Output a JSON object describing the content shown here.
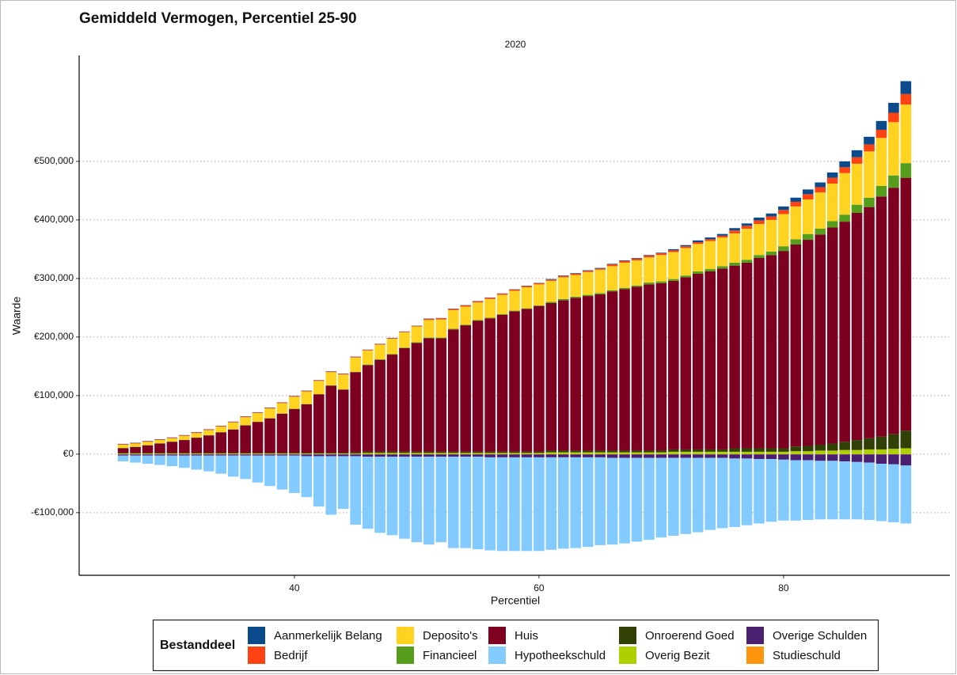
{
  "chart_data": {
    "type": "bar",
    "stacked": true,
    "title": "Gemiddeld Vermogen, Percentiel 25-90",
    "subtitle": "2020",
    "x_label": "Percentiel",
    "y_label": "Waarde",
    "legend_title": "Bestanddeel",
    "legend_position": "bottom",
    "grid": true,
    "x": [
      26,
      27,
      28,
      29,
      30,
      31,
      32,
      33,
      34,
      35,
      36,
      37,
      38,
      39,
      40,
      41,
      42,
      43,
      44,
      45,
      46,
      47,
      48,
      49,
      50,
      51,
      52,
      53,
      54,
      55,
      56,
      57,
      58,
      59,
      60,
      61,
      62,
      63,
      64,
      65,
      66,
      67,
      68,
      69,
      70,
      71,
      72,
      73,
      74,
      75,
      76,
      77,
      78,
      79,
      80,
      81,
      82,
      83,
      84,
      85,
      86,
      87,
      88,
      89,
      90
    ],
    "xlim": [
      22.4,
      93.6
    ],
    "xticks": [
      40,
      60,
      80
    ],
    "ylim": [
      -207000,
      681000
    ],
    "yticks": [
      {
        "value": -100000,
        "label": "-€100,000"
      },
      {
        "value": 0,
        "label": "€0"
      },
      {
        "value": 100000,
        "label": "€100,000"
      },
      {
        "value": 200000,
        "label": "€200,000"
      },
      {
        "value": 300000,
        "label": "€300,000"
      },
      {
        "value": 400000,
        "label": "€400,000"
      },
      {
        "value": 500000,
        "label": "€500,000"
      }
    ],
    "series": [
      {
        "name": "Aanmerkelijk Belang",
        "color": "#0b4a8b",
        "values": [
          500,
          500,
          500,
          500,
          500,
          500,
          500,
          500,
          500,
          500,
          500,
          500,
          500,
          500,
          500,
          500,
          500,
          500,
          500,
          500,
          500,
          500,
          500,
          500,
          500,
          500,
          500,
          500,
          500,
          500,
          500,
          500,
          500,
          500,
          500,
          1000,
          1000,
          1000,
          1000,
          1000,
          1000,
          1000,
          1000,
          1000,
          1000,
          2000,
          2000,
          3000,
          3000,
          3000,
          4000,
          4000,
          5000,
          5000,
          6000,
          7000,
          8000,
          8000,
          9000,
          10000,
          12000,
          13000,
          15000,
          17000,
          22000
        ]
      },
      {
        "name": "Bedrijf",
        "color": "#ff4212",
        "values": [
          1000,
          1000,
          1000,
          1000,
          1000,
          1000,
          1000,
          1000,
          1000,
          1000,
          1000,
          1000,
          1000,
          1000,
          1000,
          1000,
          1000,
          1000,
          1000,
          1000,
          1000,
          1000,
          1000,
          1000,
          1000,
          2000,
          2000,
          2000,
          2000,
          2000,
          2000,
          2000,
          2000,
          2000,
          2000,
          2000,
          2000,
          2000,
          2000,
          2000,
          3000,
          3000,
          3000,
          3000,
          3000,
          3000,
          3000,
          3000,
          3000,
          3000,
          5000,
          5000,
          6000,
          6000,
          7000,
          8000,
          9000,
          9000,
          10000,
          10000,
          11000,
          12000,
          14000,
          16000,
          18000
        ]
      },
      {
        "name": "Deposito's",
        "color": "#ffd320",
        "values": [
          5500,
          5500,
          5500,
          5500,
          5500,
          6500,
          7500,
          8500,
          9500,
          11500,
          13500,
          14500,
          16500,
          17500,
          20500,
          21500,
          22500,
          22500,
          25500,
          24500,
          24000,
          25000,
          26000,
          26000,
          27000,
          30000,
          31000,
          32000,
          31000,
          30000,
          32000,
          33000,
          34000,
          36000,
          36000,
          36000,
          37000,
          37000,
          39000,
          40000,
          41000,
          43000,
          43000,
          43000,
          45000,
          46000,
          47000,
          47000,
          48000,
          49000,
          50000,
          53000,
          53000,
          54000,
          55000,
          56000,
          59000,
          62000,
          64000,
          71000,
          70000,
          79000,
          82000,
          91000,
          100000
        ]
      },
      {
        "name": "Financieel",
        "color": "#579d1c",
        "values": [
          500,
          500,
          500,
          500,
          500,
          500,
          500,
          500,
          500,
          500,
          500,
          500,
          500,
          500,
          500,
          500,
          500,
          500,
          500,
          500,
          1000,
          1000,
          1000,
          1000,
          1000,
          1000,
          1000,
          1000,
          1000,
          1000,
          1000,
          1000,
          1000,
          1000,
          1000,
          2000,
          2000,
          2000,
          2000,
          2000,
          2000,
          2000,
          2000,
          3000,
          3000,
          3000,
          3000,
          4000,
          4000,
          4000,
          5000,
          5000,
          5000,
          6000,
          8000,
          9000,
          10000,
          10000,
          11000,
          12000,
          14000,
          16000,
          18000,
          21000,
          25000
        ]
      },
      {
        "name": "Huis",
        "color": "#7e0021",
        "values": [
          8000,
          10000,
          13000,
          16000,
          19000,
          22000,
          26000,
          30000,
          35000,
          40000,
          47000,
          53000,
          59000,
          67000,
          75000,
          83000,
          100000,
          115000,
          108000,
          137000,
          148000,
          157000,
          166000,
          177000,
          186000,
          194000,
          194000,
          209000,
          216000,
          224000,
          228000,
          234000,
          240000,
          244000,
          249000,
          252000,
          257000,
          261000,
          264000,
          267000,
          272000,
          276000,
          280000,
          284000,
          286000,
          288000,
          294000,
          300000,
          304000,
          309000,
          312000,
          317000,
          325000,
          330000,
          337000,
          345000,
          352000,
          359000,
          369000,
          376000,
          388000,
          395000,
          410000,
          421000,
          432000
        ]
      },
      {
        "name": "Hypotheekschuld",
        "color": "#83caff",
        "values": [
          -10000,
          -12000,
          -14000,
          -16000,
          -18000,
          -21000,
          -24000,
          -27000,
          -31000,
          -36000,
          -40000,
          -46000,
          -52000,
          -58000,
          -64000,
          -70000,
          -86000,
          -100000,
          -90000,
          -117000,
          -123000,
          -130000,
          -134000,
          -140000,
          -146000,
          -150000,
          -146000,
          -156000,
          -156000,
          -158000,
          -159000,
          -160000,
          -160000,
          -160000,
          -160000,
          -158000,
          -156000,
          -155000,
          -153000,
          -150000,
          -148000,
          -146000,
          -143000,
          -140000,
          -136000,
          -133000,
          -130000,
          -127000,
          -123000,
          -120000,
          -117000,
          -114000,
          -110000,
          -107000,
          -104000,
          -103000,
          -102000,
          -100000,
          -100000,
          -99000,
          -98000,
          -98000,
          -98000,
          -99000,
          -99000
        ]
      },
      {
        "name": "Onroerend Goed",
        "color": "#314004",
        "values": [
          1000,
          1000,
          1000,
          1000,
          1000,
          1000,
          1000,
          1000,
          1000,
          1000,
          1000,
          1000,
          1000,
          1000,
          1000,
          1000,
          1000,
          1000,
          1000,
          2000,
          2000,
          2000,
          2000,
          2000,
          2000,
          2000,
          2000,
          2000,
          2000,
          2000,
          2000,
          2000,
          2000,
          2000,
          2000,
          3000,
          3000,
          3000,
          3000,
          3000,
          3000,
          3000,
          3000,
          3000,
          3000,
          4000,
          4000,
          4000,
          4000,
          4000,
          6000,
          6000,
          6000,
          6000,
          6000,
          8000,
          9000,
          10000,
          12000,
          14000,
          17000,
          19000,
          22000,
          25000,
          30000
        ]
      },
      {
        "name": "Overig Bezit",
        "color": "#aecf00",
        "values": [
          1000,
          1000,
          1000,
          1000,
          1000,
          1000,
          1000,
          1000,
          1000,
          1000,
          1000,
          1000,
          1000,
          1000,
          1000,
          1000,
          1000,
          1000,
          1000,
          1000,
          2000,
          2000,
          2000,
          2000,
          2000,
          2000,
          2000,
          2000,
          2000,
          2000,
          2000,
          2000,
          2000,
          2000,
          2000,
          3000,
          3000,
          3000,
          3000,
          3000,
          3000,
          3000,
          3000,
          3000,
          3000,
          4000,
          4000,
          4000,
          4000,
          4000,
          4000,
          4000,
          4000,
          4000,
          4000,
          5000,
          5000,
          6000,
          6000,
          7000,
          7000,
          8000,
          8000,
          9000,
          10000
        ]
      },
      {
        "name": "Overige Schulden",
        "color": "#4b1f6f",
        "values": [
          -2000,
          -2000,
          -2000,
          -2000,
          -2000,
          -2000,
          -2000,
          -2000,
          -2000,
          -2000,
          -2000,
          -2000,
          -2000,
          -2000,
          -2000,
          -3000,
          -3000,
          -3000,
          -3000,
          -3000,
          -4000,
          -4000,
          -4000,
          -4000,
          -4000,
          -4000,
          -4000,
          -4000,
          -4000,
          -4000,
          -5000,
          -5000,
          -5000,
          -5000,
          -5000,
          -5000,
          -5000,
          -5000,
          -5000,
          -5000,
          -6000,
          -6000,
          -6000,
          -6000,
          -6000,
          -6000,
          -6000,
          -6000,
          -6000,
          -6000,
          -7000,
          -7000,
          -8000,
          -8000,
          -9000,
          -10000,
          -10000,
          -11000,
          -11000,
          -12000,
          -13000,
          -14000,
          -16000,
          -17000,
          -19000
        ]
      },
      {
        "name": "Studieschuld",
        "color": "#ff950e",
        "values": [
          -500,
          -500,
          -500,
          -500,
          -500,
          -500,
          -500,
          -500,
          -500,
          -500,
          -500,
          -500,
          -500,
          -500,
          -500,
          -500,
          -500,
          -500,
          -500,
          -500,
          -500,
          -500,
          -500,
          -500,
          -500,
          -500,
          -500,
          -500,
          -500,
          -500,
          -500,
          -500,
          -500,
          -500,
          -500,
          -500,
          -500,
          -500,
          -500,
          -500,
          -500,
          -500,
          -500,
          -500,
          -500,
          -500,
          -500,
          -500,
          -500,
          -500,
          -500,
          -500,
          -500,
          -500,
          -500,
          -500,
          -500,
          -500,
          -500,
          -500,
          -500,
          -500,
          -500,
          -500,
          -500
        ]
      }
    ]
  }
}
